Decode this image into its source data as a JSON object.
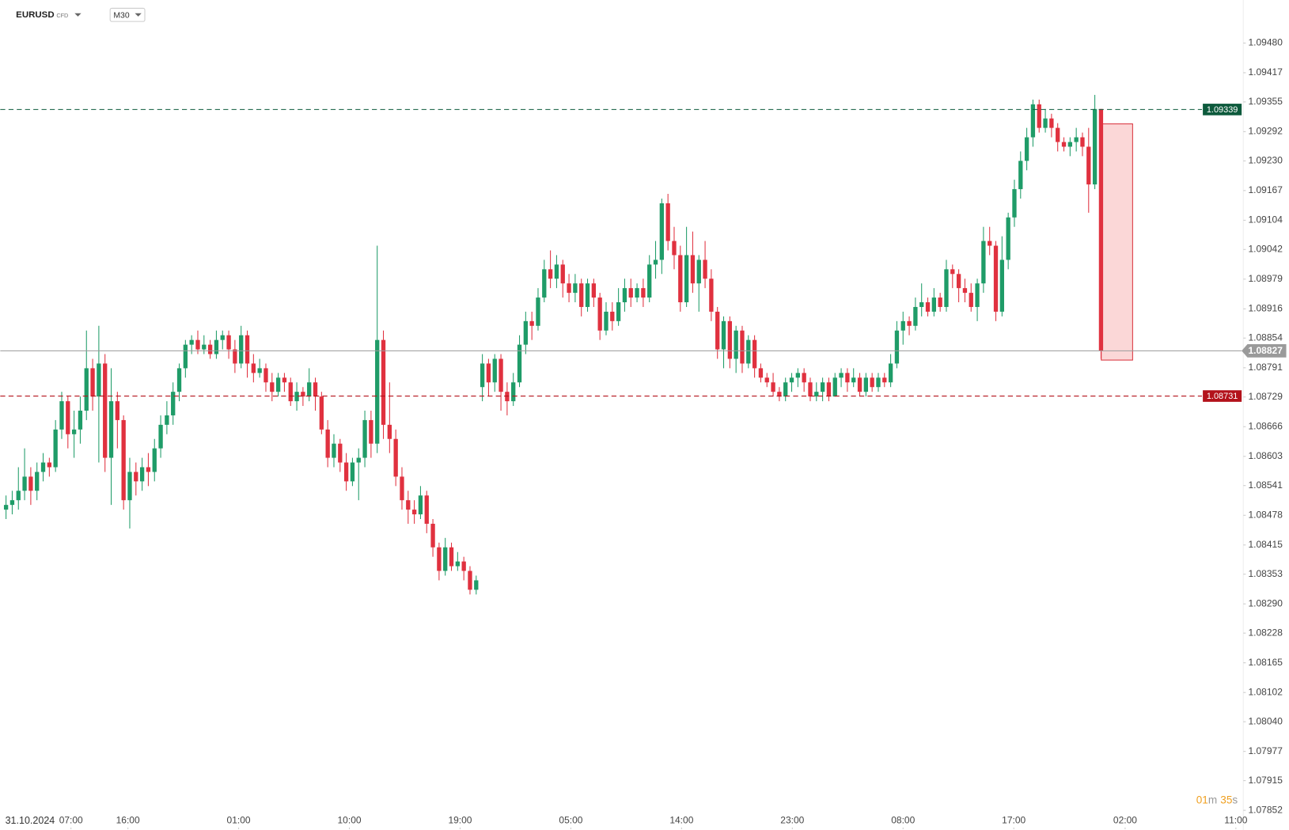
{
  "header": {
    "symbol": "EURUSD",
    "badge": "CFD",
    "timeframe": "M30"
  },
  "countdown": {
    "minutes": "01",
    "minutes_unit": "m",
    "seconds": "35",
    "seconds_unit": "s"
  },
  "chart_data": {
    "type": "candlestick",
    "date_label": "31.10.2024",
    "up_color": "#1f9c68",
    "down_color": "#e0313f",
    "open": [
      1.0849,
      1.085,
      1.0851,
      1.0853,
      1.0856,
      1.0853,
      1.0857,
      1.0859,
      1.0858,
      1.0866,
      1.0872,
      1.0865,
      1.0866,
      1.087,
      1.0879,
      1.0873,
      1.088,
      1.086,
      1.0872,
      1.0868,
      1.0851,
      1.0857,
      1.0855,
      1.0858,
      1.0857,
      1.0862,
      1.0867,
      1.0869,
      1.0874,
      1.0879,
      1.0884,
      1.0885,
      1.0883,
      1.0884,
      1.0882,
      1.0885,
      1.0886,
      1.0883,
      1.088,
      1.0886,
      1.088,
      1.0878,
      1.0879,
      1.0876,
      1.0874,
      1.0877,
      1.0876,
      1.0872,
      1.0874,
      1.0873,
      1.0876,
      1.0873,
      1.0866,
      1.086,
      1.0863,
      1.0859,
      1.0855,
      1.0859,
      1.086,
      1.0868,
      1.0863,
      1.0885,
      1.0867,
      1.0864,
      1.0856,
      1.0851,
      1.0849,
      1.0848,
      1.0852,
      1.0846,
      1.0841,
      1.0836,
      1.0841,
      1.0837,
      1.0838,
      1.0836,
      1.0832,
      1.0875,
      1.088,
      1.0876,
      1.0881,
      1.0874,
      1.0872,
      1.0876,
      1.0884,
      1.0889,
      1.0888,
      1.0894,
      1.09,
      1.0898,
      1.0901,
      1.0897,
      1.0895,
      1.0897,
      1.0892,
      1.0897,
      1.0894,
      1.0887,
      1.0891,
      1.0889,
      1.0893,
      1.0896,
      1.0894,
      1.0896,
      1.0894,
      1.0901,
      1.0902,
      1.0914,
      1.0906,
      1.0903,
      1.0893,
      1.0903,
      1.0897,
      1.0902,
      1.0898,
      1.0891,
      1.0883,
      1.0889,
      1.0881,
      1.0887,
      1.088,
      1.0885,
      1.0879,
      1.0877,
      1.0876,
      1.0874,
      1.0873,
      1.0876,
      1.0877,
      1.0878,
      1.0876,
      1.0873,
      1.0874,
      1.0876,
      1.0873,
      1.0877,
      1.0878,
      1.0876,
      1.0877,
      1.0874,
      1.0877,
      1.0875,
      1.0877,
      1.0876,
      1.088,
      1.0887,
      1.0889,
      1.0888,
      1.0892,
      1.0893,
      1.0891,
      1.0894,
      1.0892,
      1.09,
      1.0899,
      1.0896,
      1.0895,
      1.0892,
      1.0897,
      1.0906,
      1.0905,
      1.0891,
      1.0902,
      1.0911,
      1.0917,
      1.0923,
      1.0928,
      1.0935,
      1.093,
      1.0932,
      1.093,
      1.0927,
      1.0926,
      1.0927,
      1.0928,
      1.0926,
      1.0918,
      1.0934
    ],
    "high": [
      1.0852,
      1.0853,
      1.0858,
      1.0862,
      1.0858,
      1.0859,
      1.0861,
      1.086,
      1.0868,
      1.0874,
      1.0873,
      1.087,
      1.0873,
      1.0887,
      1.0881,
      1.0888,
      1.0882,
      1.0879,
      1.0874,
      1.0869,
      1.086,
      1.0859,
      1.086,
      1.0861,
      1.0864,
      1.0869,
      1.0872,
      1.0876,
      1.088,
      1.0885,
      1.0886,
      1.0887,
      1.0886,
      1.0885,
      1.0887,
      1.0887,
      1.0887,
      1.0885,
      1.0888,
      1.0887,
      1.0882,
      1.0881,
      1.088,
      1.0878,
      1.0878,
      1.0878,
      1.0877,
      1.0876,
      1.0875,
      1.0879,
      1.0877,
      1.0874,
      1.0868,
      1.0865,
      1.0864,
      1.0861,
      1.086,
      1.0862,
      1.087,
      1.087,
      1.0905,
      1.0887,
      1.0876,
      1.0866,
      1.0858,
      1.0853,
      1.0851,
      1.0854,
      1.0853,
      1.0847,
      1.0842,
      1.0843,
      1.0842,
      1.084,
      1.0839,
      1.0837,
      1.0835,
      1.0882,
      1.0881,
      1.0882,
      1.0882,
      1.0876,
      1.0878,
      1.0886,
      1.0891,
      1.0891,
      1.0896,
      1.0902,
      1.0904,
      1.0903,
      1.0902,
      1.0899,
      1.0899,
      1.0898,
      1.0898,
      1.0898,
      1.0895,
      1.0893,
      1.0893,
      1.0896,
      1.0898,
      1.0898,
      1.0897,
      1.0898,
      1.0903,
      1.0906,
      1.0915,
      1.0916,
      1.0909,
      1.0905,
      1.0909,
      1.0908,
      1.0903,
      1.0906,
      1.09,
      1.0892,
      1.089,
      1.089,
      1.0888,
      1.0888,
      1.0886,
      1.0886,
      1.088,
      1.0878,
      1.0878,
      1.0875,
      1.0877,
      1.0878,
      1.0879,
      1.0879,
      1.0877,
      1.0876,
      1.0877,
      1.0877,
      1.0878,
      1.0879,
      1.0879,
      1.0879,
      1.0878,
      1.0878,
      1.0878,
      1.0878,
      1.0878,
      1.0882,
      1.0889,
      1.0891,
      1.089,
      1.0894,
      1.0897,
      1.0894,
      1.0896,
      1.0895,
      1.0902,
      1.0901,
      1.09,
      1.0898,
      1.0897,
      1.0898,
      1.0909,
      1.0909,
      1.0906,
      1.0907,
      1.0912,
      1.0919,
      1.0925,
      1.093,
      1.0936,
      1.0936,
      1.0934,
      1.0933,
      1.0931,
      1.0928,
      1.0928,
      1.093,
      1.0929,
      1.093,
      1.0937,
      1.0934
    ],
    "low": [
      1.0847,
      1.0848,
      1.0849,
      1.0851,
      1.085,
      1.0851,
      1.0855,
      1.0856,
      1.0857,
      1.0864,
      1.0862,
      1.086,
      1.0863,
      1.0868,
      1.087,
      1.0859,
      1.0857,
      1.085,
      1.0862,
      1.0849,
      1.0845,
      1.0852,
      1.0853,
      1.0854,
      1.0855,
      1.086,
      1.0865,
      1.0867,
      1.0872,
      1.0877,
      1.0882,
      1.0882,
      1.0882,
      1.0881,
      1.0881,
      1.0883,
      1.0881,
      1.0878,
      1.0879,
      1.0877,
      1.0876,
      1.0877,
      1.0874,
      1.0872,
      1.0873,
      1.0874,
      1.0871,
      1.087,
      1.0871,
      1.0872,
      1.087,
      1.0865,
      1.0858,
      1.0858,
      1.0857,
      1.0853,
      1.0854,
      1.0851,
      1.0858,
      1.086,
      1.0861,
      1.0864,
      1.0861,
      1.0854,
      1.0849,
      1.0846,
      1.0846,
      1.0847,
      1.0844,
      1.0839,
      1.0834,
      1.0835,
      1.0836,
      1.0836,
      1.0834,
      1.0831,
      1.0831,
      1.0872,
      1.0873,
      1.0874,
      1.087,
      1.0869,
      1.0871,
      1.0875,
      1.0882,
      1.0885,
      1.0887,
      1.0893,
      1.0896,
      1.0896,
      1.0894,
      1.0893,
      1.0893,
      1.089,
      1.0891,
      1.0892,
      1.0885,
      1.0886,
      1.0887,
      1.0888,
      1.0891,
      1.0892,
      1.0893,
      1.0892,
      1.0893,
      1.0898,
      1.0899,
      1.0904,
      1.09,
      1.0891,
      1.0892,
      1.0895,
      1.0891,
      1.0896,
      1.0889,
      1.0881,
      1.0879,
      1.0879,
      1.0878,
      1.0878,
      1.0879,
      1.0877,
      1.0876,
      1.0875,
      1.0873,
      1.0872,
      1.0872,
      1.0874,
      1.0875,
      1.0874,
      1.0872,
      1.0872,
      1.0872,
      1.0872,
      1.0873,
      1.0875,
      1.0874,
      1.0875,
      1.0873,
      1.0873,
      1.0874,
      1.0874,
      1.0875,
      1.0875,
      1.0879,
      1.0884,
      1.0886,
      1.0887,
      1.089,
      1.089,
      1.089,
      1.0891,
      1.0891,
      1.0896,
      1.0893,
      1.0893,
      1.0891,
      1.0889,
      1.0895,
      1.0903,
      1.0889,
      1.089,
      1.09,
      1.0909,
      1.0915,
      1.0921,
      1.0926,
      1.0929,
      1.0929,
      1.0928,
      1.0925,
      1.0925,
      1.0924,
      1.0925,
      1.0924,
      1.0912,
      1.0917,
      1.0881
    ],
    "close": [
      1.085,
      1.0851,
      1.0853,
      1.0856,
      1.0853,
      1.0857,
      1.0859,
      1.0858,
      1.0866,
      1.0872,
      1.0865,
      1.0866,
      1.087,
      1.0879,
      1.0873,
      1.088,
      1.086,
      1.0872,
      1.0868,
      1.0851,
      1.0857,
      1.0855,
      1.0858,
      1.0857,
      1.0862,
      1.0867,
      1.0869,
      1.0874,
      1.0879,
      1.0884,
      1.0885,
      1.0883,
      1.0884,
      1.0882,
      1.0885,
      1.0886,
      1.0883,
      1.088,
      1.0886,
      1.088,
      1.0878,
      1.0879,
      1.0876,
      1.0874,
      1.0877,
      1.0876,
      1.0872,
      1.0874,
      1.0873,
      1.0876,
      1.0873,
      1.0866,
      1.086,
      1.0863,
      1.0859,
      1.0855,
      1.0859,
      1.086,
      1.0868,
      1.0863,
      1.0885,
      1.0867,
      1.0864,
      1.0856,
      1.0851,
      1.0849,
      1.0848,
      1.0852,
      1.0846,
      1.0841,
      1.0836,
      1.0841,
      1.0837,
      1.0838,
      1.0836,
      1.0832,
      1.0834,
      1.088,
      1.0876,
      1.0881,
      1.0874,
      1.0872,
      1.0876,
      1.0884,
      1.0889,
      1.0888,
      1.0894,
      1.09,
      1.0898,
      1.0901,
      1.0897,
      1.0895,
      1.0897,
      1.0892,
      1.0897,
      1.0894,
      1.0887,
      1.0891,
      1.0889,
      1.0893,
      1.0896,
      1.0894,
      1.0896,
      1.0894,
      1.0901,
      1.0902,
      1.0914,
      1.0906,
      1.0903,
      1.0893,
      1.0903,
      1.0897,
      1.0902,
      1.0898,
      1.0891,
      1.0883,
      1.0889,
      1.0881,
      1.0887,
      1.088,
      1.0885,
      1.0879,
      1.0877,
      1.0876,
      1.0874,
      1.0873,
      1.0876,
      1.0877,
      1.0878,
      1.0876,
      1.0873,
      1.0874,
      1.0876,
      1.0873,
      1.0877,
      1.0878,
      1.0876,
      1.0877,
      1.0874,
      1.0877,
      1.0875,
      1.0877,
      1.0876,
      1.088,
      1.0887,
      1.0889,
      1.0888,
      1.0892,
      1.0893,
      1.0891,
      1.0894,
      1.0892,
      1.09,
      1.0899,
      1.0896,
      1.0895,
      1.0892,
      1.0897,
      1.0906,
      1.0905,
      1.0891,
      1.0902,
      1.0911,
      1.0917,
      1.0923,
      1.0928,
      1.0935,
      1.093,
      1.0932,
      1.093,
      1.0927,
      1.0926,
      1.0927,
      1.0928,
      1.0926,
      1.0918,
      1.0934,
      1.08827
    ],
    "xlim": [
      -0.93,
      200
    ],
    "xticks": [
      {
        "value": 10.5,
        "label": "07:00"
      },
      {
        "value": 19.7,
        "label": "16:00"
      },
      {
        "value": 37.6,
        "label": "01:00"
      },
      {
        "value": 55.5,
        "label": "10:00"
      },
      {
        "value": 73.4,
        "label": "19:00"
      },
      {
        "value": 91.3,
        "label": "05:00"
      },
      {
        "value": 109.2,
        "label": "14:00"
      },
      {
        "value": 127.1,
        "label": "23:00"
      },
      {
        "value": 145,
        "label": "08:00"
      },
      {
        "value": 162.9,
        "label": "17:00"
      },
      {
        "value": 180.9,
        "label": "02:00"
      },
      {
        "value": 198.8,
        "label": "11:00"
      }
    ],
    "ylim": [
      1.07819,
      1.0951
    ],
    "yticks": [
      {
        "value": 1.0948,
        "label": "1.09480"
      },
      {
        "value": 1.09417,
        "label": "1.09417"
      },
      {
        "value": 1.09355,
        "label": "1.09355"
      },
      {
        "value": 1.09292,
        "label": "1.09292"
      },
      {
        "value": 1.0923,
        "label": "1.09230"
      },
      {
        "value": 1.09167,
        "label": "1.09167"
      },
      {
        "value": 1.09104,
        "label": "1.09104"
      },
      {
        "value": 1.09042,
        "label": "1.09042"
      },
      {
        "value": 1.08979,
        "label": "1.08979"
      },
      {
        "value": 1.08916,
        "label": "1.08916"
      },
      {
        "value": 1.08854,
        "label": "1.08854"
      },
      {
        "value": 1.08791,
        "label": "1.08791"
      },
      {
        "value": 1.08729,
        "label": "1.08729"
      },
      {
        "value": 1.08666,
        "label": "1.08666"
      },
      {
        "value": 1.08603,
        "label": "1.08603"
      },
      {
        "value": 1.08541,
        "label": "1.08541"
      },
      {
        "value": 1.08478,
        "label": "1.08478"
      },
      {
        "value": 1.08415,
        "label": "1.08415"
      },
      {
        "value": 1.08353,
        "label": "1.08353"
      },
      {
        "value": 1.0829,
        "label": "1.08290"
      },
      {
        "value": 1.08228,
        "label": "1.08228"
      },
      {
        "value": 1.08165,
        "label": "1.08165"
      },
      {
        "value": 1.08102,
        "label": "1.08102"
      },
      {
        "value": 1.0804,
        "label": "1.08040"
      },
      {
        "value": 1.07977,
        "label": "1.07977"
      },
      {
        "value": 1.07915,
        "label": "1.07915"
      },
      {
        "value": 1.07852,
        "label": "1.07852"
      }
    ],
    "levels": [
      {
        "value": 1.09339,
        "label": "1.09339",
        "color": "#0d5a3c"
      },
      {
        "value": 1.08731,
        "label": "1.08731",
        "color": "#b3121b"
      }
    ],
    "current_price": {
      "value": 1.08827,
      "label": "1.08827",
      "color": "#9a9a9a"
    }
  }
}
